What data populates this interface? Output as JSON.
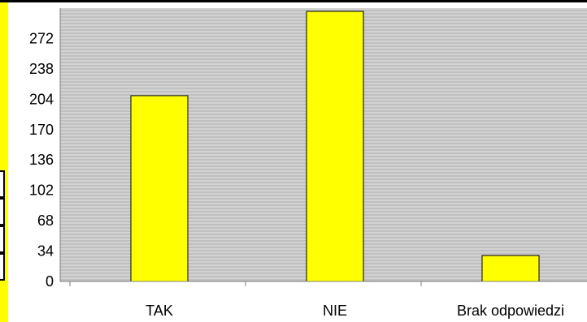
{
  "chart_data": {
    "type": "bar",
    "categories": [
      "TAK",
      "NIE",
      "Brak odpowiedzi"
    ],
    "values": [
      208,
      316,
      29
    ],
    "title": "",
    "xlabel": "",
    "ylabel": "",
    "ylim": [
      0,
      306
    ],
    "yticks": [
      0,
      34,
      68,
      102,
      136,
      170,
      204,
      238,
      272
    ],
    "grid": true,
    "colors": {
      "bar_fill": "#ffff00",
      "bar_stroke": "#000000",
      "plot_background": "#c0c0c0",
      "gridline": "#ffffff",
      "accent_strip": "#ffff00"
    }
  }
}
